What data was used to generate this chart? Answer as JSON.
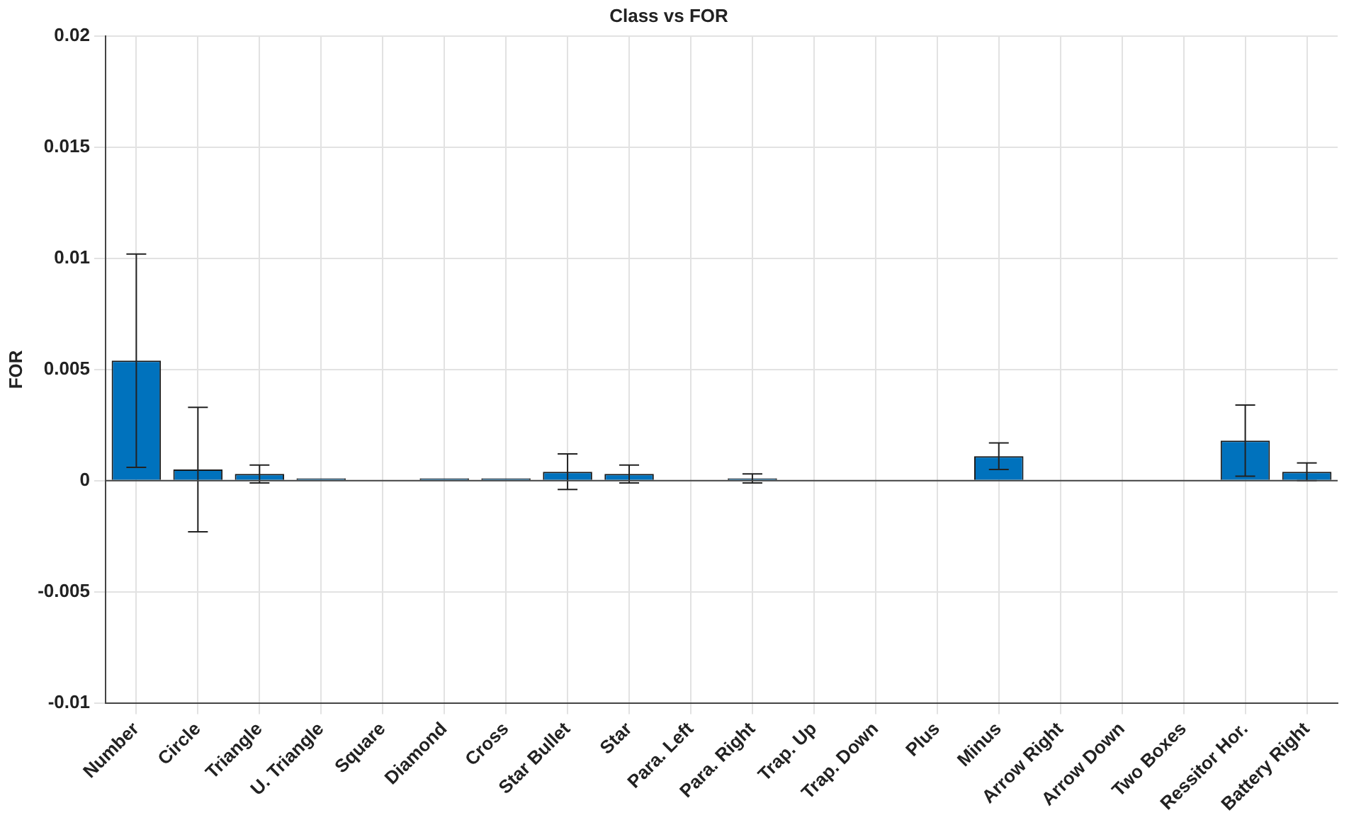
{
  "chart_data": {
    "type": "bar",
    "title": "Class vs FOR",
    "ylabel": "FOR",
    "categories": [
      "Number",
      "Circle",
      "Triangle",
      "U. Triangle",
      "Square",
      "Diamond",
      "Cross",
      "Star Bullet",
      "Star",
      "Para. Left",
      "Para. Right",
      "Trap. Up",
      "Trap. Down",
      "Plus",
      "Minus",
      "Arrow Right",
      "Arrow Down",
      "Two Boxes",
      "Ressitor Hor.",
      "Battery Right"
    ],
    "values": [
      0.0054,
      0.0005,
      0.0003,
      0.0001,
      0,
      0.0001,
      0.0001,
      0.0004,
      0.0003,
      0,
      0.0001,
      0,
      0,
      0,
      0.0011,
      0,
      0,
      0,
      0.0018,
      0.0004
    ],
    "errors": [
      0.0048,
      0.0028,
      0.0004,
      null,
      null,
      null,
      null,
      0.0008,
      0.0004,
      null,
      0.0002,
      null,
      null,
      null,
      0.0006,
      null,
      null,
      null,
      0.0016,
      0.0004
    ],
    "color": "#0072bd",
    "ylim": [
      -0.01,
      0.02
    ],
    "yticks": [
      -0.01,
      -0.005,
      0,
      0.005,
      0.01,
      0.015,
      0.02
    ],
    "grid": true
  }
}
